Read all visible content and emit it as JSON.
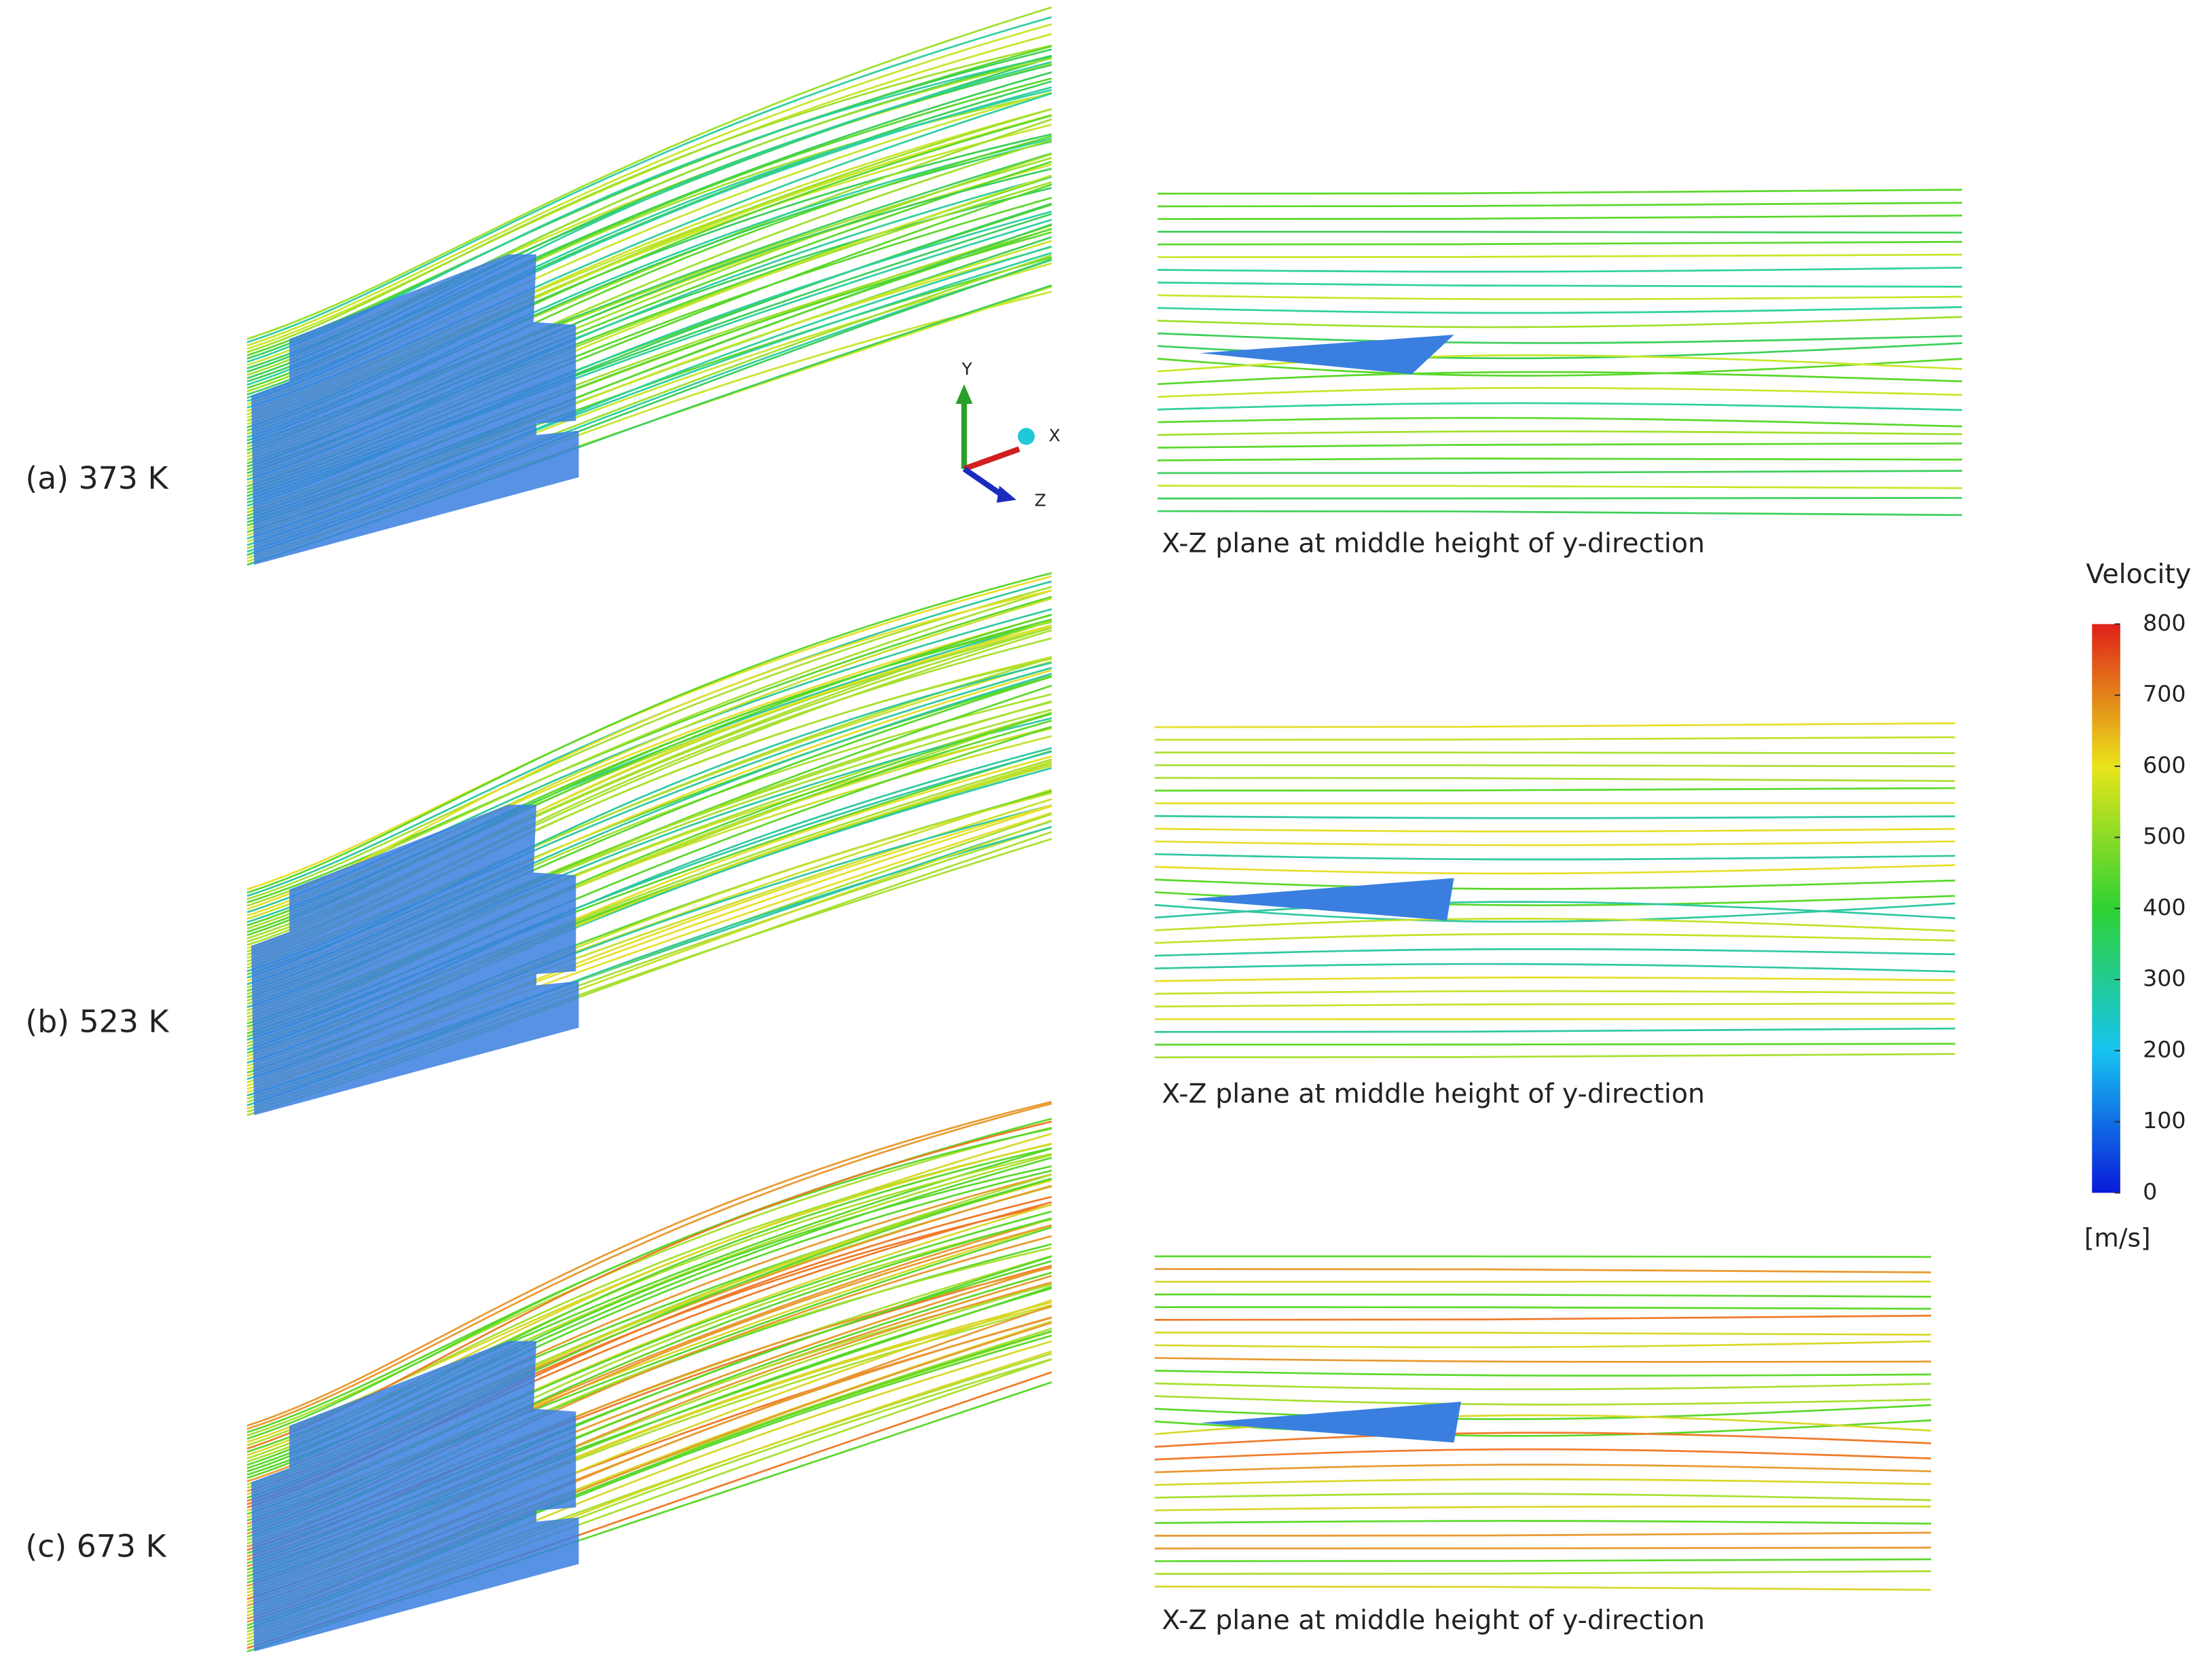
{
  "panels": [
    {
      "label": "(a) 373 K",
      "caption": "X-Z plane at middle height of y-direction"
    },
    {
      "label": "(b) 523 K",
      "caption": "X-Z plane at middle height of y-direction"
    },
    {
      "label": "(c) 673 K",
      "caption": "X-Z plane at middle height of y-direction"
    }
  ],
  "axes_triad": {
    "y": "Y",
    "x": "X",
    "z": "Z"
  },
  "colorbar": {
    "title": "Velocity",
    "unit": "[m/s]",
    "lim": [
      0,
      800
    ],
    "ticks": [
      0,
      100,
      200,
      300,
      400,
      500,
      600,
      700,
      800
    ]
  }
}
